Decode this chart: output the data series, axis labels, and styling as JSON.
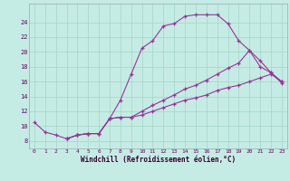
{
  "xlabel": "Windchill (Refroidissement éolien,°C)",
  "bg_color": "#c5ece4",
  "grid_color": "#a8d8cc",
  "line_color": "#993399",
  "xlim": [
    -0.5,
    23.5
  ],
  "ylim": [
    7.0,
    26.5
  ],
  "xticks": [
    0,
    1,
    2,
    3,
    4,
    5,
    6,
    7,
    8,
    9,
    10,
    11,
    12,
    13,
    14,
    15,
    16,
    17,
    18,
    19,
    20,
    21,
    22,
    23
  ],
  "yticks": [
    8,
    10,
    12,
    14,
    16,
    18,
    20,
    22,
    24
  ],
  "line1_x": [
    0,
    1,
    2,
    3,
    4,
    5,
    6,
    7,
    8,
    9,
    10,
    11,
    12,
    13,
    14,
    15,
    16,
    17,
    18,
    19,
    20,
    21,
    22,
    23
  ],
  "line1_y": [
    10.5,
    9.2,
    8.8,
    8.3,
    8.8,
    9.0,
    9.0,
    11.0,
    13.5,
    17.0,
    20.5,
    21.5,
    23.5,
    23.8,
    24.8,
    25.0,
    25.0,
    25.0,
    23.8,
    21.5,
    20.2,
    18.8,
    17.2,
    16.0
  ],
  "line2_x": [
    3,
    4,
    5,
    6,
    7,
    8,
    9,
    10,
    11,
    12,
    13,
    14,
    15,
    16,
    17,
    18,
    19,
    20,
    21,
    22,
    23
  ],
  "line2_y": [
    8.3,
    8.8,
    9.0,
    9.0,
    11.0,
    11.2,
    11.2,
    11.5,
    12.0,
    12.5,
    13.0,
    13.5,
    13.8,
    14.2,
    14.8,
    15.2,
    15.5,
    16.0,
    16.5,
    17.0,
    16.0
  ],
  "line3_x": [
    3,
    4,
    5,
    6,
    7,
    8,
    9,
    10,
    11,
    12,
    13,
    14,
    15,
    16,
    17,
    18,
    19,
    20,
    21,
    22,
    23
  ],
  "line3_y": [
    8.3,
    8.8,
    9.0,
    9.0,
    11.0,
    11.2,
    11.2,
    12.0,
    12.8,
    13.5,
    14.2,
    15.0,
    15.5,
    16.2,
    17.0,
    17.8,
    18.5,
    20.2,
    18.0,
    17.2,
    15.8
  ]
}
